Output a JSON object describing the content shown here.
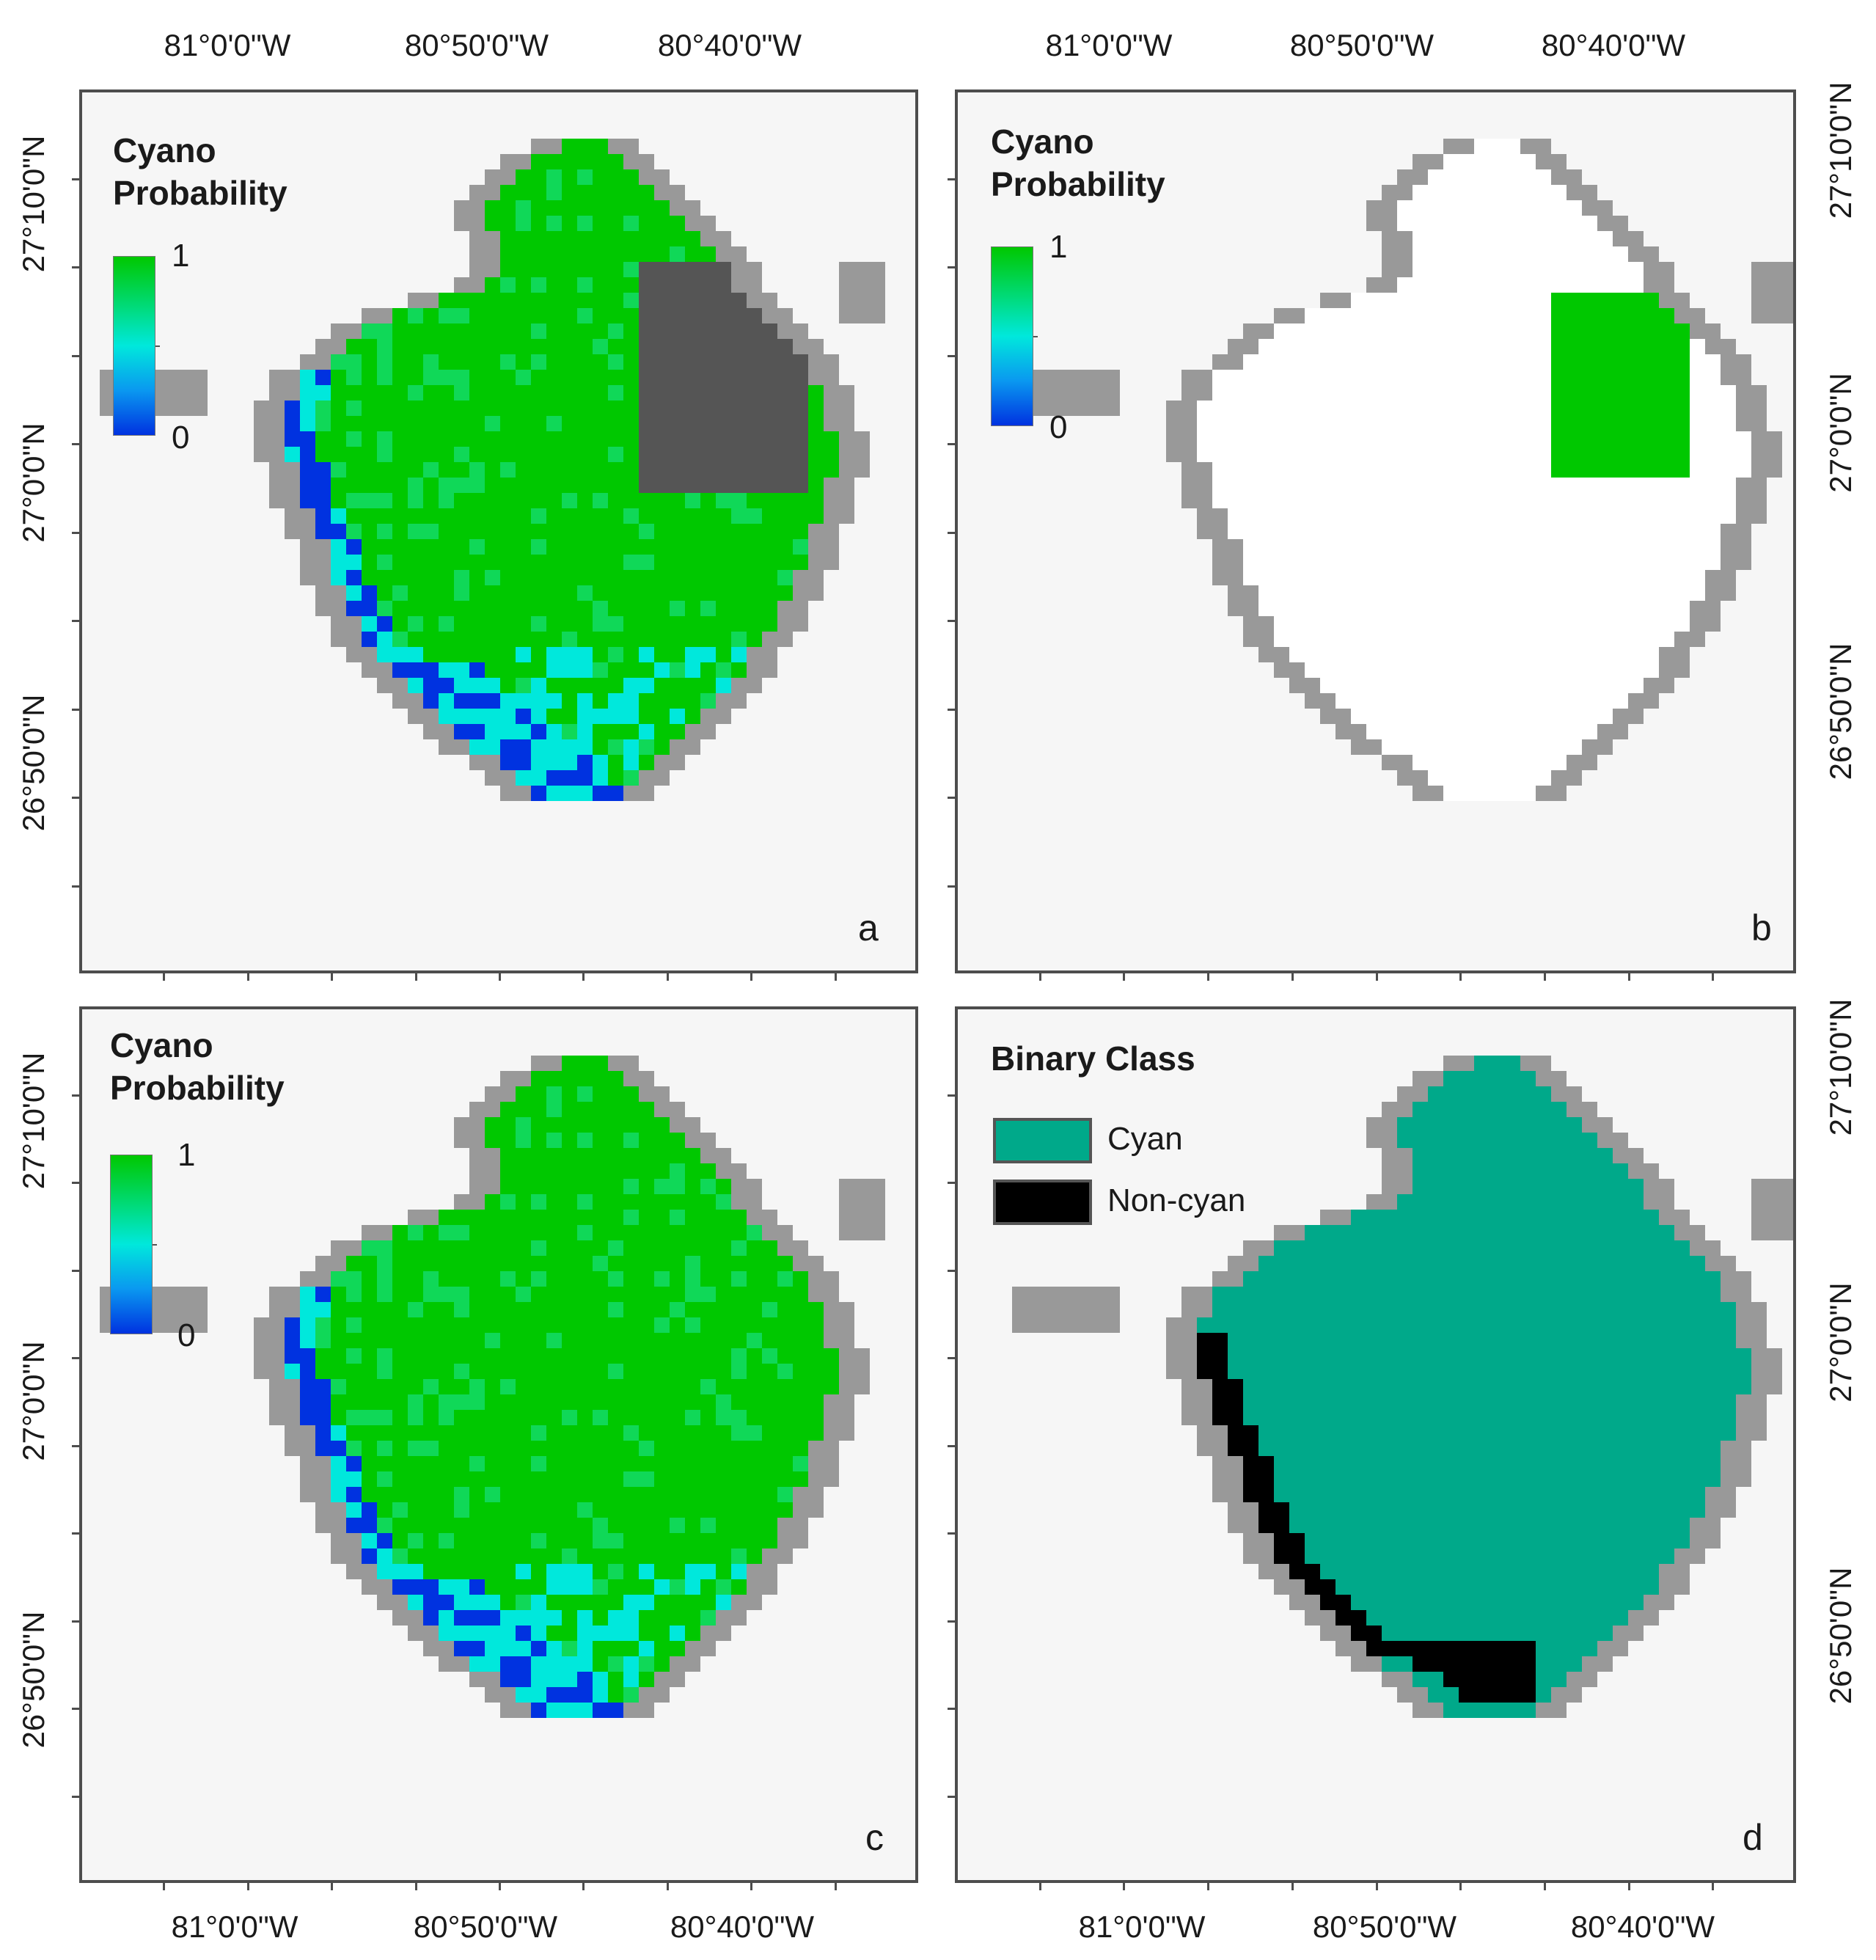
{
  "colors": {
    "background": "#f6f6f6",
    "land": "#999999",
    "white_water": "#ffffff",
    "dark_gray": "#555555",
    "cyano_high": "#00c800",
    "cyano_mid": "#00e8dc",
    "cyano_low": "#0032e0",
    "binary_cyan": "#00a98a",
    "binary_noncyan": "#000000"
  },
  "axes": {
    "lon_labels": [
      "81°0'0\"W",
      "80°50'0\"W",
      "80°40'0\"W"
    ],
    "lat_labels": [
      "27°10'0\"N",
      "27°0'0\"N",
      "26°50'0\"N"
    ]
  },
  "panels": [
    {
      "id": "a",
      "panel_label": "a",
      "legend_title_line1": "Cyano",
      "legend_title_line2": "Probability",
      "scale_max": "1",
      "scale_min": "0"
    },
    {
      "id": "b",
      "panel_label": "b",
      "legend_title_line1": "Cyano",
      "legend_title_line2": "Probability",
      "scale_max": "1",
      "scale_min": "0"
    },
    {
      "id": "c",
      "panel_label": "c",
      "legend_title_line1": "Cyano",
      "legend_title_line2": "Probability",
      "scale_max": "1",
      "scale_min": "0"
    },
    {
      "id": "d",
      "panel_label": "d",
      "legend_title": "Binary Class",
      "classes": [
        "Cyan",
        "Non-cyan"
      ]
    }
  ]
}
